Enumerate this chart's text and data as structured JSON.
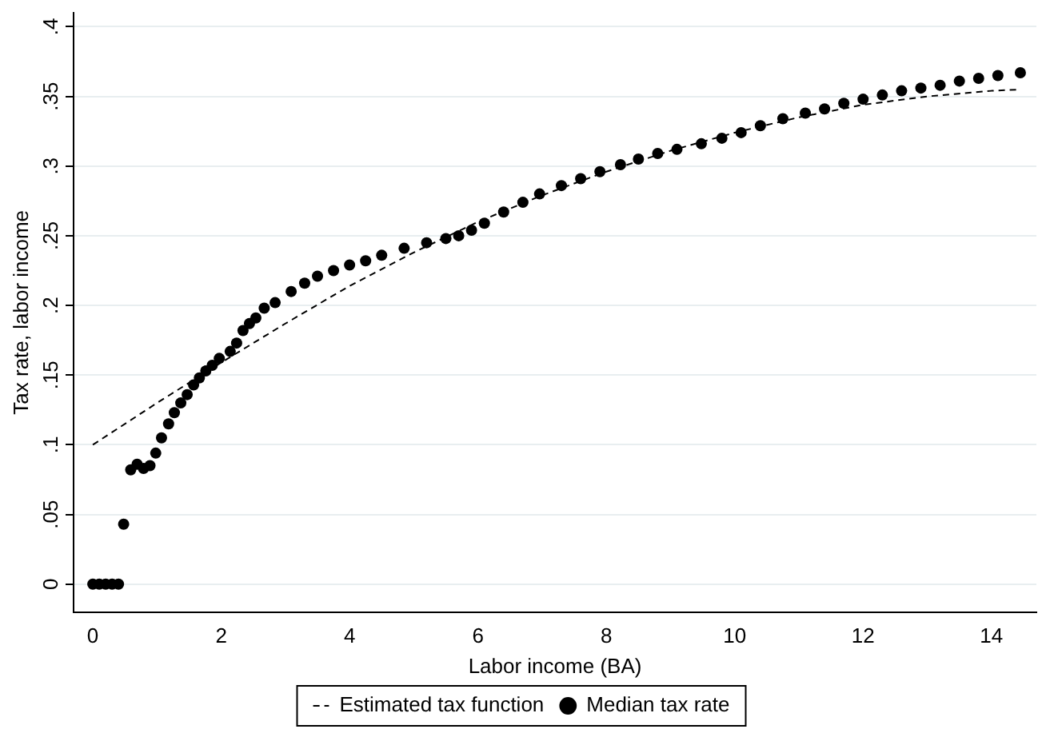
{
  "chart_data": {
    "type": "scatter",
    "xlabel": "Labor income (BA)",
    "ylabel": "Tax rate, labor income",
    "xlim": [
      -0.3,
      14.7
    ],
    "xticks": [
      0,
      2,
      4,
      6,
      8,
      10,
      12,
      14
    ],
    "ylim": [
      -0.02,
      0.41
    ],
    "yticks": [
      0,
      {
        "value": 0.05,
        "label": ".05"
      },
      {
        "value": 0.1,
        "label": ".1"
      },
      {
        "value": 0.15,
        "label": ".15"
      },
      {
        "value": 0.2,
        "label": ".2"
      },
      {
        "value": 0.25,
        "label": ".25"
      },
      {
        "value": 0.3,
        "label": ".3"
      },
      {
        "value": 0.35,
        "label": ".35"
      },
      {
        "value": 0.4,
        "label": ".4"
      }
    ],
    "grid": "y",
    "legend": "bottom",
    "series": [
      {
        "name": "Estimated tax function",
        "type": "line",
        "color": "#000000",
        "marker": "none",
        "line_style": "dashed",
        "x": [
          0,
          1,
          2,
          3,
          4,
          5,
          6,
          7,
          8,
          9,
          10,
          11,
          12,
          13,
          14,
          14.45
        ],
        "values": [
          0.1,
          0.13,
          0.159,
          0.187,
          0.214,
          0.238,
          0.26,
          0.279,
          0.296,
          0.311,
          0.324,
          0.335,
          0.344,
          0.35,
          0.354,
          0.355
        ]
      },
      {
        "name": "Median tax rate",
        "color": "#000000",
        "marker": "circle",
        "x": [
          0,
          0.1,
          0.2,
          0.3,
          0.4,
          0.48,
          0.59,
          0.69,
          0.79,
          0.89,
          0.98,
          1.07,
          1.18,
          1.27,
          1.37,
          1.47,
          1.57,
          1.66,
          1.76,
          1.86,
          1.97,
          2.14,
          2.24,
          2.34,
          2.44,
          2.54,
          2.67,
          2.84,
          3.09,
          3.3,
          3.5,
          3.75,
          4.0,
          4.25,
          4.5,
          4.85,
          5.2,
          5.5,
          5.7,
          5.9,
          6.1,
          6.4,
          6.7,
          6.96,
          7.3,
          7.6,
          7.9,
          8.22,
          8.5,
          8.8,
          9.1,
          9.48,
          9.8,
          10.1,
          10.4,
          10.75,
          11.1,
          11.4,
          11.7,
          12.0,
          12.3,
          12.6,
          12.9,
          13.2,
          13.5,
          13.8,
          14.1,
          14.45
        ],
        "values": [
          0,
          0,
          0,
          0,
          0,
          0.043,
          0.082,
          0.086,
          0.083,
          0.085,
          0.094,
          0.105,
          0.115,
          0.123,
          0.13,
          0.136,
          0.143,
          0.148,
          0.153,
          0.157,
          0.162,
          0.167,
          0.173,
          0.182,
          0.187,
          0.191,
          0.198,
          0.202,
          0.21,
          0.216,
          0.221,
          0.225,
          0.229,
          0.232,
          0.236,
          0.241,
          0.245,
          0.248,
          0.25,
          0.254,
          0.259,
          0.267,
          0.274,
          0.28,
          0.286,
          0.291,
          0.296,
          0.301,
          0.305,
          0.309,
          0.312,
          0.316,
          0.32,
          0.324,
          0.329,
          0.334,
          0.338,
          0.341,
          0.345,
          0.348,
          0.351,
          0.354,
          0.356,
          0.358,
          0.361,
          0.363,
          0.365,
          0.367
        ]
      }
    ]
  }
}
